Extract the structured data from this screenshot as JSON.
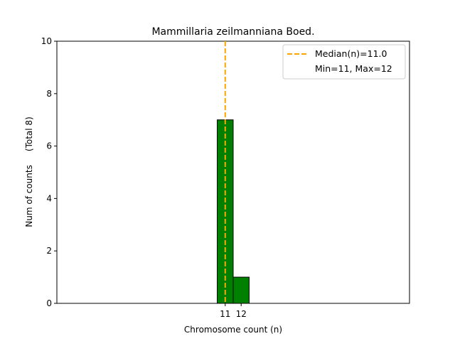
{
  "chart_data": {
    "type": "bar",
    "title": "Mammillaria zeilmanniana Boed.",
    "xlabel": "Chromosome count (n)",
    "ylabel": "Num of counts     (Total 8)",
    "x": [
      11,
      12
    ],
    "values": [
      7,
      1
    ],
    "xticks": [
      "11",
      "12"
    ],
    "yticks": [
      "0",
      "2",
      "4",
      "6",
      "8",
      "10"
    ],
    "ylim": [
      0,
      10
    ],
    "bar_color": "#008000",
    "bar_edge_color": "#000000",
    "median": 11.0,
    "median_color": "#ffa500",
    "legend": {
      "placement": "top-right",
      "entries": [
        "Median(n)=11.0",
        "Min=11, Max=12"
      ]
    }
  }
}
